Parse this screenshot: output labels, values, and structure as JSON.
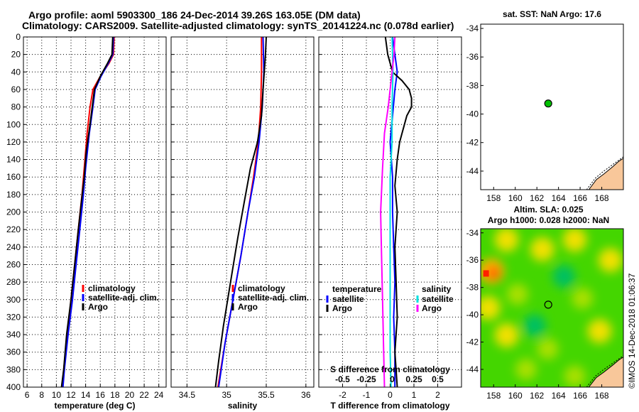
{
  "header": {
    "line1": "Argo profile: aoml 5903300_186 24-Dec-2014 39.26S 163.05E (DM data)",
    "line2": "Climatology: CARS2009. Satellite-adjusted climatology: synTS_20141224.nc (0.078d earlier)"
  },
  "colors": {
    "climatology": "#ff0000",
    "satellite": "#0000ff",
    "argo": "#000000",
    "sat_sal": "#00e0e0",
    "argo_sal": "#ff00ff",
    "land": "#f8c79a"
  },
  "chart_data": [
    {
      "type": "line",
      "id": "temperature",
      "xlabel": "temperature (deg C)",
      "xlim": [
        5.5,
        25
      ],
      "xticks": [
        6,
        8,
        10,
        12,
        14,
        16,
        18,
        20,
        22,
        24
      ],
      "ylim": [
        0,
        400
      ],
      "yticks": [
        0,
        20,
        40,
        60,
        80,
        100,
        120,
        140,
        160,
        180,
        200,
        220,
        240,
        260,
        280,
        300,
        320,
        340,
        360,
        380,
        400
      ],
      "legend": [
        "climatology",
        "satellite-adj. clim.",
        "Argo"
      ],
      "series": [
        {
          "name": "climatology",
          "color": "#ff0000",
          "points": [
            [
              17.9,
              0
            ],
            [
              17.8,
              20
            ],
            [
              17.2,
              30
            ],
            [
              16.0,
              45
            ],
            [
              15.0,
              60
            ],
            [
              14.6,
              80
            ],
            [
              14.2,
              110
            ],
            [
              13.8,
              150
            ],
            [
              13.5,
              180
            ],
            [
              13.0,
              220
            ],
            [
              12.5,
              260
            ],
            [
              12.0,
              300
            ],
            [
              11.5,
              340
            ],
            [
              11.0,
              380
            ],
            [
              10.8,
              400
            ]
          ]
        },
        {
          "name": "satellite-adj. clim.",
          "color": "#0000ff",
          "points": [
            [
              17.8,
              0
            ],
            [
              17.7,
              20
            ],
            [
              17.1,
              30
            ],
            [
              16.1,
              45
            ],
            [
              15.3,
              60
            ],
            [
              15.0,
              80
            ],
            [
              14.5,
              110
            ],
            [
              14.0,
              150
            ],
            [
              13.7,
              180
            ],
            [
              13.2,
              220
            ],
            [
              12.7,
              260
            ],
            [
              12.2,
              300
            ],
            [
              11.6,
              340
            ],
            [
              11.1,
              380
            ],
            [
              10.9,
              400
            ]
          ]
        },
        {
          "name": "Argo",
          "color": "#000000",
          "points": [
            [
              17.7,
              0
            ],
            [
              17.6,
              20
            ],
            [
              17.0,
              30
            ],
            [
              16.0,
              45
            ],
            [
              15.2,
              60
            ],
            [
              14.9,
              80
            ],
            [
              14.6,
              100
            ],
            [
              14.1,
              130
            ],
            [
              13.8,
              160
            ],
            [
              13.4,
              190
            ],
            [
              13.0,
              220
            ],
            [
              12.5,
              260
            ],
            [
              12.0,
              300
            ],
            [
              11.4,
              340
            ],
            [
              11.0,
              380
            ],
            [
              10.7,
              400
            ]
          ]
        }
      ]
    },
    {
      "type": "line",
      "id": "salinity",
      "xlabel": "salinity",
      "xlim": [
        34.3,
        36.1
      ],
      "xticks": [
        34.5,
        35,
        35.5,
        36
      ],
      "xticklabels": [
        "34.5",
        "35",
        "35.5",
        "36"
      ],
      "ylim": [
        0,
        400
      ],
      "legend": [
        "climatology",
        "satellite-adj. clim.",
        "Argo"
      ],
      "series": [
        {
          "name": "climatology",
          "color": "#ff0000",
          "points": [
            [
              35.44,
              0
            ],
            [
              35.44,
              40
            ],
            [
              35.43,
              80
            ],
            [
              35.4,
              120
            ],
            [
              35.34,
              160
            ],
            [
              35.27,
              200
            ],
            [
              35.18,
              250
            ],
            [
              35.08,
              300
            ],
            [
              34.98,
              350
            ],
            [
              34.89,
              400
            ]
          ]
        },
        {
          "name": "satellite-adj. clim.",
          "color": "#0000ff",
          "points": [
            [
              35.46,
              0
            ],
            [
              35.47,
              40
            ],
            [
              35.45,
              80
            ],
            [
              35.41,
              120
            ],
            [
              35.35,
              160
            ],
            [
              35.27,
              200
            ],
            [
              35.18,
              250
            ],
            [
              35.08,
              300
            ],
            [
              34.98,
              350
            ],
            [
              34.9,
              400
            ]
          ]
        },
        {
          "name": "Argo",
          "color": "#000000",
          "points": [
            [
              35.5,
              0
            ],
            [
              35.49,
              20
            ],
            [
              35.46,
              60
            ],
            [
              35.44,
              90
            ],
            [
              35.39,
              120
            ],
            [
              35.3,
              150
            ],
            [
              35.22,
              190
            ],
            [
              35.14,
              230
            ],
            [
              35.05,
              280
            ],
            [
              34.96,
              330
            ],
            [
              34.9,
              370
            ],
            [
              34.86,
              400
            ]
          ]
        }
      ]
    },
    {
      "type": "line",
      "id": "difference",
      "xlabel": "T difference from climatology",
      "xlabel_top": "S difference from climatology",
      "xlim": [
        -3,
        3
      ],
      "xticks": [
        -2,
        -1,
        0,
        1,
        2
      ],
      "xticklabels": [
        "-2",
        "-1",
        "0",
        "1",
        "2"
      ],
      "sticks": [
        "-0.5",
        "-0.25",
        "0",
        "0.25",
        "0.5"
      ],
      "ylim": [
        0,
        400
      ],
      "legend_left_title": "temperature",
      "legend_right_title": "salinity",
      "legend_items": [
        "satellite",
        "Argo"
      ],
      "series": [
        {
          "name": "T satellite",
          "color": "#0000ff",
          "points": [
            [
              0.1,
              0
            ],
            [
              0.2,
              20
            ],
            [
              0.3,
              40
            ],
            [
              0.2,
              60
            ],
            [
              0.1,
              90
            ],
            [
              0.0,
              120
            ],
            [
              0.1,
              160
            ],
            [
              0.1,
              200
            ],
            [
              0.15,
              240
            ],
            [
              0.2,
              280
            ],
            [
              0.15,
              320
            ],
            [
              0.2,
              360
            ],
            [
              0.2,
              400
            ]
          ]
        },
        {
          "name": "T Argo",
          "color": "#000000",
          "points": [
            [
              -0.2,
              0
            ],
            [
              -0.1,
              20
            ],
            [
              0.1,
              40
            ],
            [
              0.5,
              50
            ],
            [
              0.8,
              60
            ],
            [
              0.9,
              70
            ],
            [
              0.9,
              80
            ],
            [
              0.7,
              90
            ],
            [
              0.6,
              100
            ],
            [
              0.4,
              120
            ],
            [
              0.3,
              140
            ],
            [
              0.2,
              170
            ],
            [
              0.3,
              200
            ],
            [
              0.2,
              240
            ],
            [
              0.25,
              280
            ],
            [
              0.3,
              320
            ],
            [
              0.2,
              360
            ],
            [
              0.3,
              400
            ]
          ]
        },
        {
          "name": "S satellite",
          "color": "#00e0e0",
          "points": [
            [
              0.02,
              0
            ],
            [
              0.03,
              40
            ],
            [
              0.02,
              80
            ],
            [
              0.02,
              120
            ],
            [
              0.0,
              160
            ],
            [
              0.0,
              200
            ],
            [
              0.0,
              240
            ],
            [
              0.0,
              280
            ],
            [
              0.0,
              320
            ],
            [
              0.0,
              360
            ],
            [
              0.01,
              400
            ]
          ]
        },
        {
          "name": "S Argo",
          "color": "#ff00ff",
          "points": [
            [
              0.05,
              0
            ],
            [
              0.04,
              20
            ],
            [
              0.02,
              40
            ],
            [
              -0.02,
              80
            ],
            [
              -0.06,
              110
            ],
            [
              -0.08,
              150
            ],
            [
              -0.1,
              200
            ],
            [
              -0.09,
              250
            ],
            [
              -0.08,
              300
            ],
            [
              -0.07,
              350
            ],
            [
              -0.06,
              400
            ]
          ]
        }
      ]
    },
    {
      "type": "scatter",
      "id": "sst-map",
      "title": "sat. SST: NaN  Argo: 17.6",
      "xlim": [
        156.8,
        170
      ],
      "ylim": [
        -45.3,
        -33.7
      ],
      "xticks": [
        158,
        160,
        162,
        164,
        166,
        168
      ],
      "yticks": [
        -34,
        -36,
        -38,
        -40,
        -42,
        -44
      ],
      "argo_position": [
        163.05,
        -39.26
      ],
      "marker_color": "#00c000"
    },
    {
      "type": "heatmap",
      "id": "sla-map",
      "title_line1": "Altim. SLA: 0.025",
      "title_line2": "Argo h1000: 0.028 h2000: NaN",
      "xlim": [
        156.8,
        170
      ],
      "ylim": [
        -45.3,
        -33.7
      ],
      "xticks": [
        158,
        160,
        162,
        164,
        166,
        168
      ],
      "yticks": [
        -34,
        -36,
        -38,
        -40,
        -42,
        -44
      ],
      "argo_position": [
        163.05,
        -39.26
      ],
      "colors": {
        "background": "#44d600",
        "high": "#f0e000",
        "highest": "#ff2000",
        "low": "#00c060"
      },
      "blobs": [
        {
          "lon": 157.8,
          "lat": -36.8,
          "level": 3
        },
        {
          "lon": 157.5,
          "lat": -39.5,
          "level": 2
        },
        {
          "lon": 159.2,
          "lat": -34.5,
          "level": 2
        },
        {
          "lon": 162.5,
          "lat": -35.2,
          "level": 2
        },
        {
          "lon": 165.5,
          "lat": -34.5,
          "level": 2
        },
        {
          "lon": 168.8,
          "lat": -36.0,
          "level": 2
        },
        {
          "lon": 160.2,
          "lat": -38.5,
          "level": 1
        },
        {
          "lon": 166.2,
          "lat": -38.8,
          "level": 1
        },
        {
          "lon": 159.2,
          "lat": -41.5,
          "level": 2
        },
        {
          "lon": 163.0,
          "lat": -42.5,
          "level": 1
        },
        {
          "lon": 167.8,
          "lat": -41.2,
          "level": 2
        },
        {
          "lon": 161.0,
          "lat": -44.0,
          "level": 1
        },
        {
          "lon": 165.5,
          "lat": -44.5,
          "level": 1
        },
        {
          "lon": 164.5,
          "lat": -37.2,
          "level": 0
        },
        {
          "lon": 161.8,
          "lat": -40.8,
          "level": 0
        }
      ]
    }
  ],
  "watermark": "©IMOS 14-Dec-2018 01:06:37"
}
